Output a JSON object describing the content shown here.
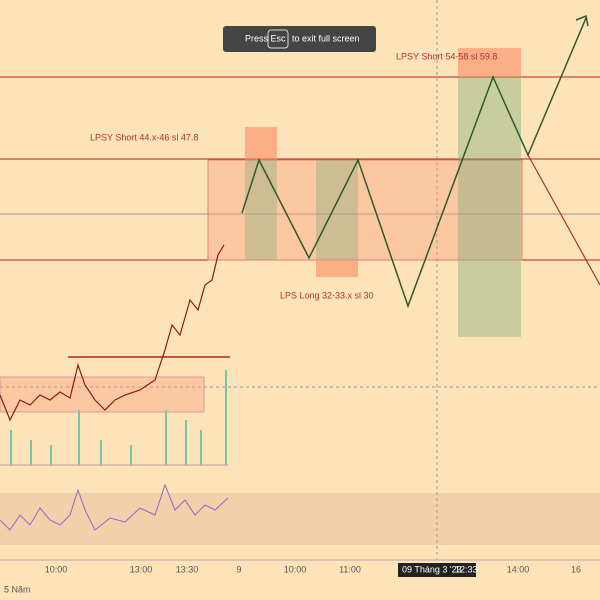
{
  "toast": {
    "press": "Press",
    "key": "Esc",
    "message": "to exit full screen"
  },
  "annotations": [
    "LPSY Short 54-58 sl 59.8",
    "LPSY Short 44.x-46 sl 47.8",
    "LPS Long 32-33.x sl 30"
  ],
  "x_axis": [
    "10:00",
    "13:00",
    "13:30",
    "9",
    "10:00",
    "11:00",
    "14:00",
    "16"
  ],
  "crosshair": {
    "date": "09 Tháng 3 '23",
    "time": "12:33"
  },
  "footer": "5 Năm"
}
